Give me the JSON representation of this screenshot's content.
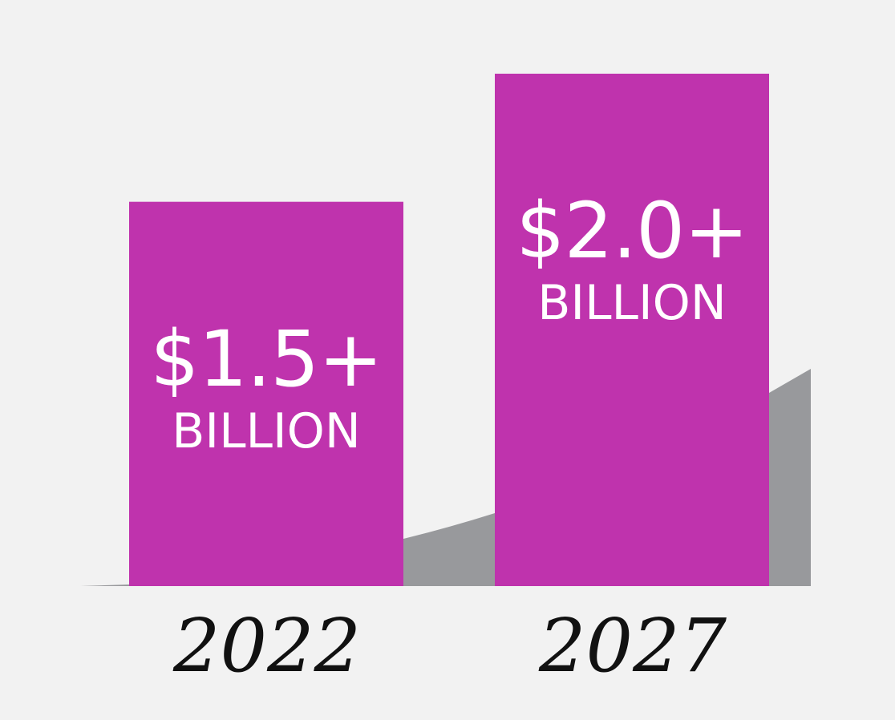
{
  "chart_data": {
    "type": "bar",
    "categories": [
      "2022",
      "2027"
    ],
    "values": [
      1.5,
      2.0
    ],
    "value_labels": [
      "$1.5+",
      "$2.0+"
    ],
    "unit_label": "BILLION",
    "ylim": [
      0,
      2.2
    ],
    "grid": false,
    "legend": "none"
  },
  "colors": {
    "background": "#f2f2f2",
    "bar": "#bf33ad",
    "trend_area": "#98999c",
    "text_on_bar": "#ffffff",
    "year_text": "#111111"
  }
}
